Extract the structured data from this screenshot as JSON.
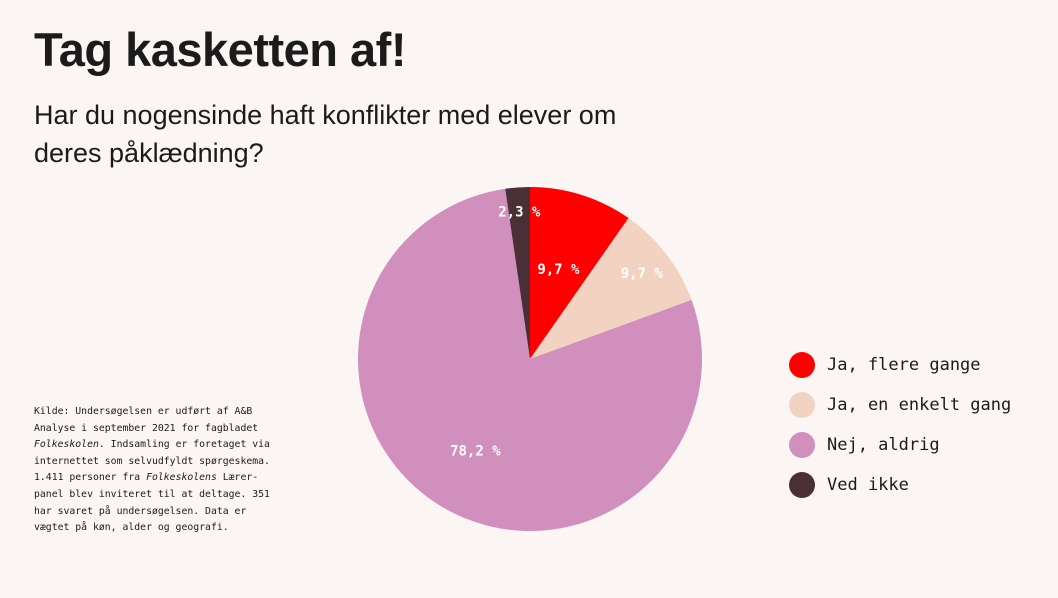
{
  "title": "Tag kasketten af!",
  "subtitle": "Har du nogensinde haft konflikter med elever om deres påklædning?",
  "source": {
    "part1": "Kilde: Undersøgelsen er udført af A&B Analyse i september 2021 for fagbladet ",
    "italic1": "Folkeskolen",
    "part2": ". Indsamling er foretaget via internettet som selvudfyldt spørgeskema. 1.411 personer fra ",
    "italic2": "Folkeskolens",
    "part3": " Lærer-panel blev inviteret til at deltage. 351 har svaret på undersøgelsen. Data er vægtet på køn, alder og geografi."
  },
  "chart_data": {
    "type": "pie",
    "title": "Tag kasketten af!",
    "subtitle": "Har du nogensinde haft konflikter med elever om deres påklædning?",
    "start_angle_deg": 0,
    "direction": "clockwise",
    "legend_position": "right",
    "slices": [
      {
        "name": "Ja, flere gange",
        "value": 9.7,
        "label": "9,7 %",
        "color": "#ff0000"
      },
      {
        "name": "Ja, en enkelt gang",
        "value": 9.7,
        "label": "9,7 %",
        "color": "#f2d3c1"
      },
      {
        "name": "Nej, aldrig",
        "value": 78.2,
        "label": "78,2 %",
        "color": "#d18fbd"
      },
      {
        "name": "Ved ikke",
        "value": 2.3,
        "label": "2,3 %",
        "color": "#4a3036"
      }
    ]
  }
}
